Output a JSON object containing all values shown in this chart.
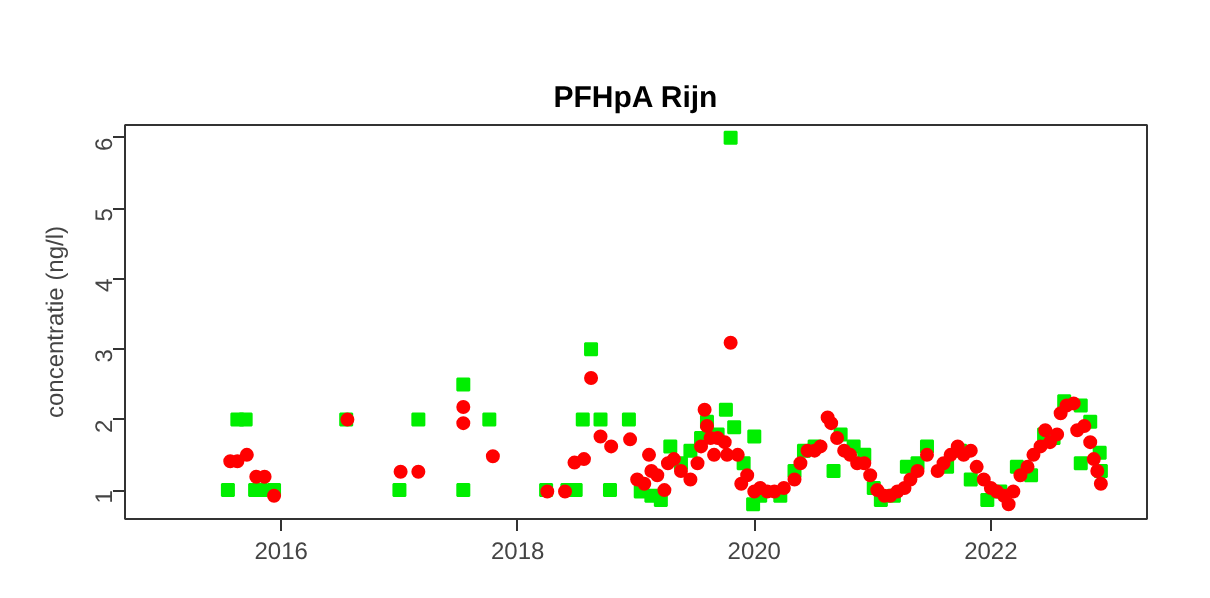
{
  "chart_data": {
    "type": "scatter",
    "title": "PFHpA Rijn",
    "ylabel": "concentratie (ng/l)",
    "xlim": [
      2014.68,
      2023.32
    ],
    "ylim": [
      0.59,
      6.18
    ],
    "xticks": [
      2016,
      2018,
      2020,
      2022
    ],
    "yticks": [
      1,
      2,
      3,
      4,
      5,
      6
    ],
    "series": [
      {
        "color": "#00ee00",
        "marker": "square",
        "x": [
          2015.55,
          2015.63,
          2015.7,
          2015.78,
          2015.83,
          2015.94,
          2016.55,
          2017.0,
          2017.16,
          2017.54,
          2017.54,
          2017.76,
          2018.24,
          2018.42,
          2018.49,
          2018.55,
          2018.62,
          2018.7,
          2018.78,
          2018.94,
          2019.04,
          2019.13,
          2019.21,
          2019.29,
          2019.38,
          2019.46,
          2019.55,
          2019.6,
          2019.69,
          2019.76,
          2019.8,
          2019.83,
          2019.91,
          2019.99,
          2020.0,
          2020.05,
          2020.22,
          2020.34,
          2020.42,
          2020.51,
          2020.67,
          2020.73,
          2020.84,
          2020.93,
          2021.01,
          2021.07,
          2021.18,
          2021.29,
          2021.38,
          2021.46,
          2021.63,
          2021.74,
          2021.83,
          2021.97,
          2022.08,
          2022.22,
          2022.34,
          2022.45,
          2022.53,
          2022.62,
          2022.76,
          2022.76,
          2022.84,
          2022.92,
          2022.93
        ],
        "values": [
          1.0,
          2.0,
          2.0,
          1.0,
          1.0,
          1.0,
          2.0,
          1.0,
          2.0,
          2.5,
          1.0,
          2.0,
          1.0,
          1.0,
          1.0,
          2.0,
          3.0,
          2.0,
          1.0,
          2.0,
          0.98,
          0.92,
          0.86,
          1.62,
          1.38,
          1.56,
          1.74,
          1.97,
          1.79,
          2.14,
          6.0,
          1.89,
          1.38,
          0.8,
          1.76,
          0.92,
          0.92,
          1.27,
          1.56,
          1.62,
          1.27,
          1.79,
          1.62,
          1.5,
          1.03,
          0.86,
          0.92,
          1.33,
          1.38,
          1.62,
          1.33,
          1.56,
          1.15,
          0.86,
          0.98,
          1.33,
          1.21,
          1.79,
          1.74,
          2.26,
          2.2,
          1.38,
          1.97,
          1.53,
          1.27
        ]
      },
      {
        "color": "#ff0000",
        "marker": "circle",
        "x": [
          2015.57,
          2015.63,
          2015.71,
          2015.79,
          2015.86,
          2015.94,
          2016.56,
          2017.01,
          2017.16,
          2017.54,
          2017.54,
          2017.79,
          2018.25,
          2018.4,
          2018.48,
          2018.56,
          2018.62,
          2018.7,
          2018.79,
          2018.95,
          2019.01,
          2019.07,
          2019.11,
          2019.13,
          2019.18,
          2019.24,
          2019.27,
          2019.32,
          2019.38,
          2019.46,
          2019.52,
          2019.55,
          2019.58,
          2019.6,
          2019.63,
          2019.66,
          2019.69,
          2019.75,
          2019.77,
          2019.8,
          2019.86,
          2019.89,
          2019.94,
          2020.0,
          2020.05,
          2020.11,
          2020.17,
          2020.25,
          2020.34,
          2020.39,
          2020.45,
          2020.51,
          2020.56,
          2020.62,
          2020.65,
          2020.7,
          2020.76,
          2020.81,
          2020.87,
          2020.93,
          2020.98,
          2021.04,
          2021.1,
          2021.15,
          2021.21,
          2021.27,
          2021.32,
          2021.38,
          2021.46,
          2021.55,
          2021.6,
          2021.66,
          2021.72,
          2021.77,
          2021.83,
          2021.88,
          2021.94,
          2022.0,
          2022.05,
          2022.11,
          2022.15,
          2022.19,
          2022.25,
          2022.31,
          2022.36,
          2022.42,
          2022.46,
          2022.5,
          2022.56,
          2022.59,
          2022.64,
          2022.7,
          2022.73,
          2022.79,
          2022.84,
          2022.87,
          2022.9,
          2022.93
        ],
        "values": [
          1.41,
          1.41,
          1.5,
          1.19,
          1.19,
          0.92,
          2.0,
          1.26,
          1.26,
          2.18,
          1.95,
          1.48,
          0.98,
          0.98,
          1.39,
          1.44,
          2.59,
          1.76,
          1.62,
          1.72,
          1.15,
          1.09,
          1.5,
          1.27,
          1.21,
          1.0,
          1.38,
          1.44,
          1.27,
          1.15,
          1.38,
          1.62,
          2.14,
          1.91,
          1.74,
          1.5,
          1.74,
          1.68,
          1.5,
          3.09,
          1.5,
          1.09,
          1.21,
          0.98,
          1.03,
          0.98,
          0.98,
          1.03,
          1.15,
          1.38,
          1.56,
          1.56,
          1.62,
          2.03,
          1.95,
          1.74,
          1.56,
          1.5,
          1.38,
          1.38,
          1.21,
          1.0,
          0.92,
          0.92,
          0.98,
          1.03,
          1.15,
          1.27,
          1.5,
          1.27,
          1.38,
          1.5,
          1.62,
          1.5,
          1.56,
          1.33,
          1.15,
          1.03,
          0.98,
          0.92,
          0.8,
          0.98,
          1.21,
          1.33,
          1.5,
          1.62,
          1.85,
          1.68,
          1.79,
          2.09,
          2.2,
          2.23,
          1.85,
          1.91,
          1.68,
          1.44,
          1.27,
          1.09
        ]
      }
    ]
  }
}
